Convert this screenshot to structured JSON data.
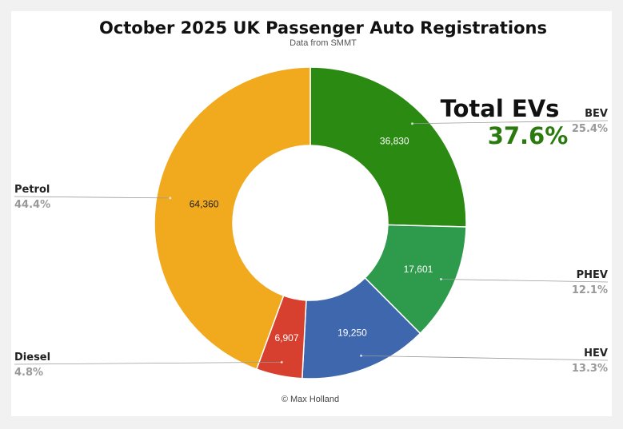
{
  "chart_data": {
    "type": "pie",
    "style": "donut",
    "title": "October 2025 UK Passenger Auto Registrations",
    "subtitle": "Data from SMMT",
    "credit": "© Max Holland",
    "slices": [
      {
        "label": "BEV",
        "value": 36830,
        "percent_label": "25.4%",
        "color": "#2a8a11"
      },
      {
        "label": "PHEV",
        "value": 17601,
        "percent_label": "12.1%",
        "color": "#2e9a4c"
      },
      {
        "label": "HEV",
        "value": 19250,
        "percent_label": "13.3%",
        "color": "#3f67ad"
      },
      {
        "label": "Diesel",
        "value": 6907,
        "percent_label": "4.8%",
        "color": "#d7402f"
      },
      {
        "label": "Petrol",
        "value": 64360,
        "percent_label": "44.4%",
        "color": "#f1a91d"
      }
    ],
    "value_labels": [
      "36,830",
      "17,601",
      "19,250",
      "6,907",
      "64,360"
    ],
    "annotation": {
      "title": "Total EVs",
      "value": "37.6%",
      "value_color": "#2a7a0e"
    }
  }
}
